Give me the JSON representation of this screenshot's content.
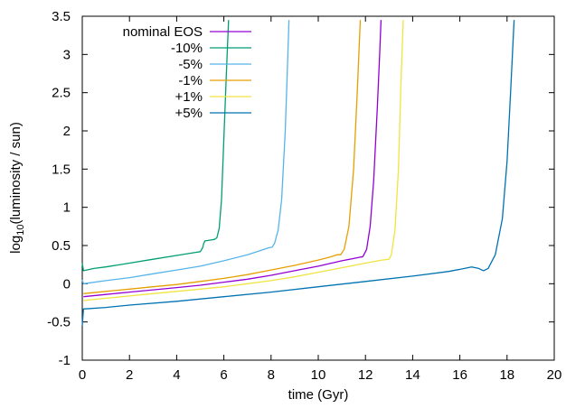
{
  "chart_data": {
    "type": "line",
    "title": "",
    "xlabel": "time (Gyr)",
    "ylabel_parts": {
      "prefix": "log",
      "subscript": "10",
      "suffix": "(luminosity / sun)"
    },
    "xlim": [
      0,
      20
    ],
    "ylim": [
      -1,
      3.5
    ],
    "xticks": [
      0,
      2,
      4,
      6,
      8,
      10,
      12,
      14,
      16,
      18,
      20
    ],
    "yticks": [
      -1,
      -0.5,
      0,
      0.5,
      1,
      1.5,
      2,
      2.5,
      3,
      3.5
    ],
    "xtick_labels": [
      "0",
      "2",
      "4",
      "6",
      "8",
      "10",
      "12",
      "14",
      "16",
      "18",
      "20"
    ],
    "ytick_labels": [
      "-1",
      "-0.5",
      "0",
      "0.5",
      "1",
      "1.5",
      "2",
      "2.5",
      "3",
      "3.5"
    ],
    "grid": false,
    "legend_position": "top-left",
    "series": [
      {
        "name": "nominal EOS",
        "color": "#9400d3",
        "x": [
          0.05,
          1,
          2,
          3,
          4,
          5,
          6,
          7,
          8,
          9,
          10,
          11,
          11.5,
          11.8,
          11.85,
          11.9,
          12.05,
          12.2,
          12.35,
          12.5,
          12.6,
          12.66
        ],
        "y": [
          -0.17,
          -0.14,
          -0.11,
          -0.08,
          -0.05,
          -0.02,
          0.02,
          0.06,
          0.11,
          0.17,
          0.23,
          0.3,
          0.33,
          0.35,
          0.35,
          0.36,
          0.45,
          0.75,
          1.35,
          2.3,
          3.0,
          3.45
        ]
      },
      {
        "name": "-10%",
        "color": "#009e73",
        "x": [
          0,
          0.05,
          0.5,
          1,
          2,
          3,
          4,
          4.8,
          5.0,
          5.1,
          5.15,
          5.2,
          5.4,
          5.6,
          5.7,
          5.8,
          5.9,
          6.0,
          6.1,
          6.2
        ],
        "y": [
          0.27,
          0.17,
          0.2,
          0.22,
          0.27,
          0.32,
          0.37,
          0.41,
          0.42,
          0.47,
          0.53,
          0.56,
          0.57,
          0.58,
          0.6,
          0.72,
          1.1,
          1.9,
          2.7,
          3.45
        ]
      },
      {
        "name": "-5%",
        "color": "#56b4e9",
        "x": [
          0,
          0.05,
          1,
          2,
          3,
          4,
          5,
          6,
          7,
          7.6,
          7.9,
          8.05,
          8.15,
          8.3,
          8.45,
          8.6,
          8.7,
          8.76
        ],
        "y": [
          0.05,
          0.0,
          0.04,
          0.08,
          0.13,
          0.18,
          0.23,
          0.3,
          0.38,
          0.44,
          0.47,
          0.48,
          0.53,
          0.7,
          1.1,
          2.0,
          2.9,
          3.45
        ]
      },
      {
        "name": "-1%",
        "color": "#e69f00",
        "x": [
          0.05,
          1,
          2,
          3,
          4,
          5,
          6,
          7,
          8,
          9,
          10,
          10.5,
          10.8,
          10.95,
          11.1,
          11.3,
          11.5,
          11.65,
          11.78
        ],
        "y": [
          -0.13,
          -0.1,
          -0.07,
          -0.04,
          -0.01,
          0.03,
          0.07,
          0.12,
          0.18,
          0.24,
          0.31,
          0.35,
          0.38,
          0.38,
          0.45,
          0.75,
          1.5,
          2.5,
          3.45
        ]
      },
      {
        "name": "+1%",
        "color": "#f0e442",
        "x": [
          0.05,
          1,
          2,
          3,
          4,
          5,
          6,
          7,
          8,
          9,
          10,
          11,
          12,
          12.7,
          13.0,
          13.1,
          13.25,
          13.4,
          13.5,
          13.6
        ],
        "y": [
          -0.22,
          -0.19,
          -0.16,
          -0.13,
          -0.1,
          -0.07,
          -0.04,
          0.0,
          0.04,
          0.09,
          0.15,
          0.21,
          0.27,
          0.31,
          0.32,
          0.38,
          0.7,
          1.5,
          2.6,
          3.45
        ]
      },
      {
        "name": "+5%",
        "color": "#0072b2",
        "x": [
          0,
          0.05,
          1,
          2,
          4,
          6,
          8,
          10,
          12,
          14,
          15.5,
          16.2,
          16.5,
          16.8,
          17.0,
          17.2,
          17.5,
          17.8,
          18.0,
          18.15,
          18.3
        ],
        "y": [
          -0.55,
          -0.33,
          -0.31,
          -0.28,
          -0.23,
          -0.17,
          -0.11,
          -0.04,
          0.03,
          0.1,
          0.16,
          0.2,
          0.22,
          0.2,
          0.17,
          0.2,
          0.38,
          0.85,
          1.6,
          2.5,
          3.45
        ]
      }
    ]
  }
}
